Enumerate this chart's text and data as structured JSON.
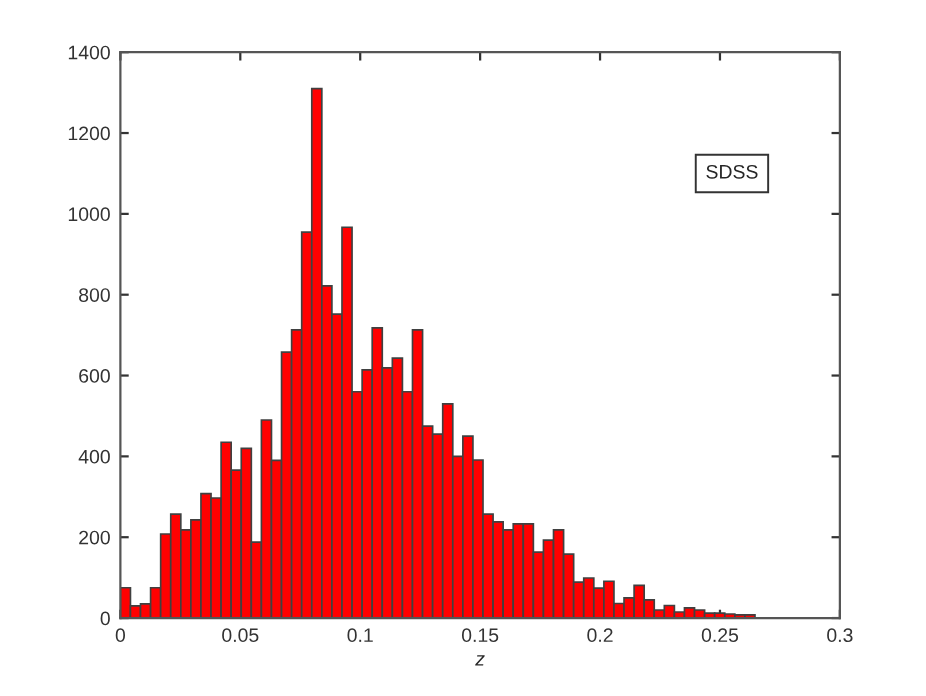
{
  "chart_data": {
    "type": "histogram",
    "xlabel": "z",
    "bins": [
      0,
      0.0042,
      0.0084,
      0.0126,
      0.0168,
      0.021,
      0.0252,
      0.0294,
      0.0336,
      0.0378,
      0.042,
      0.0462,
      0.0504,
      0.0546,
      0.0588,
      0.063,
      0.0672,
      0.0714,
      0.0756,
      0.0798,
      0.084,
      0.0882,
      0.0924,
      0.0966,
      0.1008,
      0.105,
      0.1092,
      0.1134,
      0.1176,
      0.1218,
      0.126,
      0.1302,
      0.1344,
      0.1386,
      0.1428,
      0.147,
      0.1512,
      0.1554,
      0.1596,
      0.1638,
      0.168,
      0.1722,
      0.1764,
      0.1806,
      0.1848,
      0.189,
      0.1932,
      0.1974,
      0.2016,
      0.2058,
      0.21,
      0.2142,
      0.2184,
      0.2226,
      0.2268,
      0.231,
      0.2352,
      0.2394,
      0.2436,
      0.2478,
      0.252,
      0.2562,
      0.2604,
      0.2646,
      0.2688,
      0.273,
      0.2772,
      0.2814,
      0.2856
    ],
    "values": [
      75,
      30,
      35,
      75,
      208,
      257,
      218,
      243,
      308,
      297,
      435,
      366,
      420,
      188,
      490,
      390,
      658,
      713,
      955,
      1310,
      822,
      752,
      967,
      560,
      614,
      718,
      619,
      643,
      560,
      713,
      475,
      455,
      530,
      400,
      450,
      391,
      257,
      238,
      218,
      233,
      233,
      163,
      193,
      218,
      158,
      89,
      99,
      74,
      91,
      36,
      50,
      81,
      45,
      20,
      31,
      15,
      25,
      20,
      12,
      12,
      10,
      8,
      8,
      null,
      null,
      null,
      null,
      null
    ],
    "color": "#ff0000",
    "xlim": [
      0,
      0.3
    ],
    "xticks": [
      0,
      0.05,
      0.1,
      0.15,
      0.2,
      0.25,
      0.3
    ],
    "ylim": [
      0,
      1400
    ],
    "yticks": [
      0,
      200,
      400,
      600,
      800,
      1000,
      1200,
      1400
    ],
    "grid": false,
    "legend": false,
    "annotations": [
      {
        "text": "SDSS",
        "x": 0.255,
        "y": 1100
      }
    ]
  }
}
